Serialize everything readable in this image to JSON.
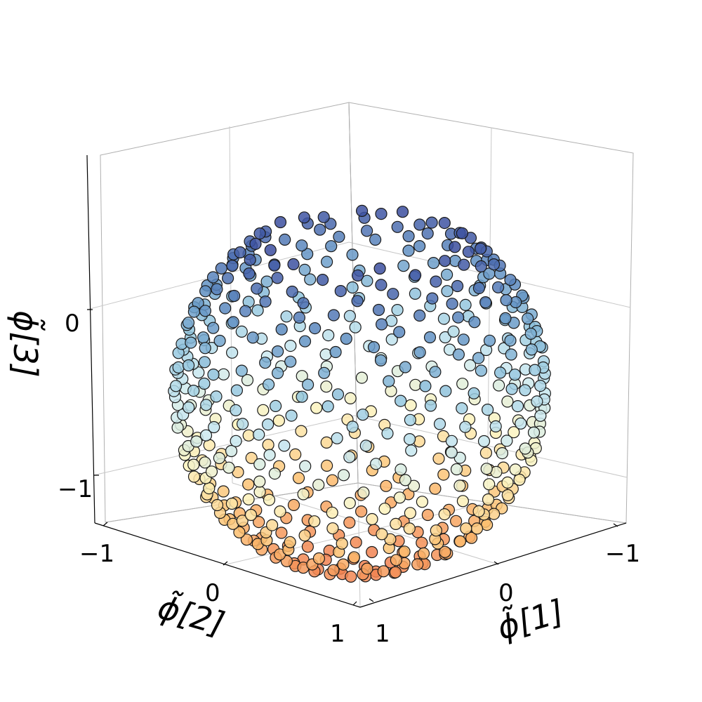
{
  "chart_data": {
    "type": "scatter",
    "projection": "3d",
    "marker_edge_color": "#1a1a1a",
    "colormap": [
      "#f07f4f",
      "#fcbf6f",
      "#fdf3bd",
      "#cbe9f0",
      "#93c6de",
      "#5f8fc2",
      "#3b4d9e"
    ],
    "color_by": "z",
    "xlabel": "ϕ̃[1]",
    "ylabel": "ϕ̃[2]",
    "zlabel": "ϕ̃[3]",
    "xlim": [
      -1,
      1
    ],
    "ylim": [
      -1,
      1
    ],
    "zlim": [
      -1.2,
      0.85
    ],
    "x_ticks": [
      "−1",
      "0",
      "1"
    ],
    "y_ticks": [
      "−1",
      "0",
      "1"
    ],
    "z_ticks": [
      "−1",
      "0"
    ],
    "grid": true,
    "sample_point": {
      "x": 0.0,
      "y": 0.0,
      "z": -1.0
    },
    "point_count": 600
  }
}
